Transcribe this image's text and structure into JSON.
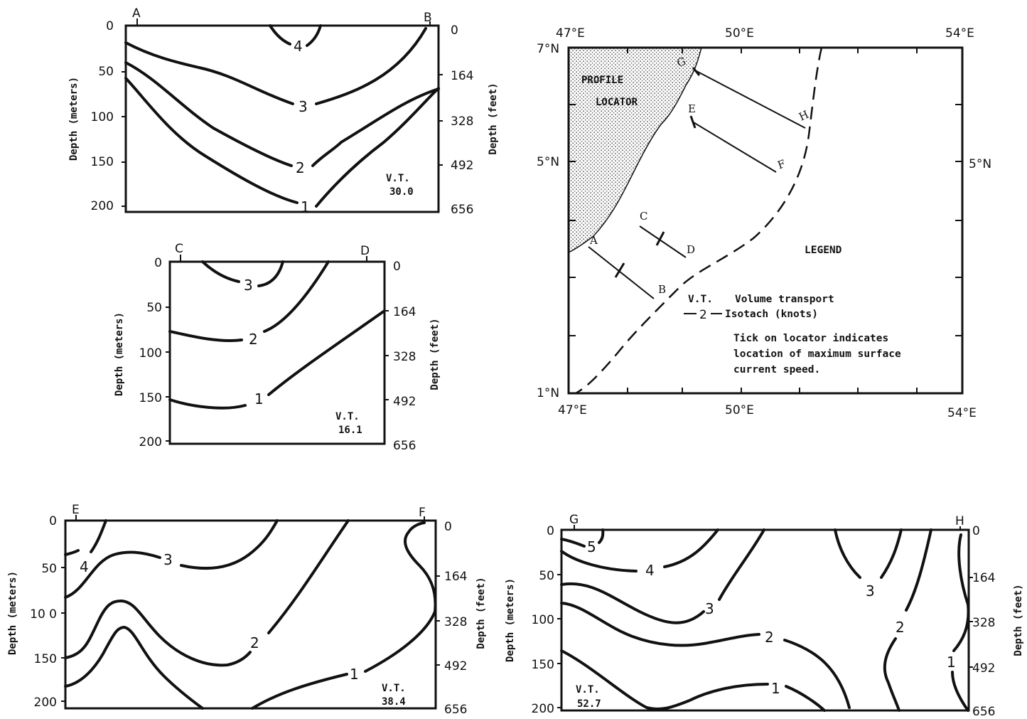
{
  "profiles": {
    "ab": {
      "start": "A",
      "end": "B",
      "vt_label": "V.T.",
      "vt_value": "30.0",
      "meters": [
        "0",
        "50",
        "100",
        "150",
        "200"
      ],
      "feet": [
        "0",
        "164",
        "328",
        "492",
        "656"
      ],
      "isotachs": [
        "1",
        "2",
        "3",
        "4"
      ]
    },
    "cd": {
      "start": "C",
      "end": "D",
      "vt_label": "V.T.",
      "vt_value": "16.1",
      "meters": [
        "0",
        "50",
        "100",
        "150",
        "200"
      ],
      "feet": [
        "0",
        "164",
        "328",
        "492",
        "656"
      ],
      "isotachs": [
        "1",
        "2",
        "3"
      ]
    },
    "ef": {
      "start": "E",
      "end": "F",
      "vt_label": "V.T.",
      "vt_value": "38.4",
      "meters": [
        "0",
        "50",
        "10 0",
        "150",
        "200"
      ],
      "feet": [
        "0",
        "164",
        "328",
        "492",
        "656"
      ],
      "isotachs": [
        "1",
        "2",
        "3",
        "4"
      ]
    },
    "gh": {
      "start": "G",
      "end": "H",
      "vt_label": "V.T.",
      "vt_value": "52.7",
      "meters": [
        "0",
        "50",
        "100",
        "150",
        "200"
      ],
      "feet": [
        "0",
        "164",
        "328",
        "492",
        "656"
      ],
      "isotachs": [
        "1",
        "2",
        "3",
        "4",
        "5",
        "3",
        "2",
        "1"
      ]
    }
  },
  "axis_titles": {
    "meters": "Depth (meters)",
    "feet": "Depth (feet)"
  },
  "map": {
    "lon_top": [
      "47°E",
      "50°E",
      "54°E"
    ],
    "lon_bottom": [
      "47°E",
      "50°E",
      "54°E"
    ],
    "lat_left": [
      "7°N",
      "5°N",
      "1°N"
    ],
    "lat_right": [
      "5°N"
    ],
    "locator_line1": "PROFILE",
    "locator_line2": "LOCATOR",
    "points": [
      "A",
      "B",
      "C",
      "D",
      "E",
      "F",
      "G",
      "H"
    ]
  },
  "legend": {
    "title": "LEGEND",
    "vt_key": "V.T.",
    "vt_desc": "Volume transport",
    "iso_key": "2",
    "iso_desc": "Isotach (knots)",
    "note_line1": "Tick on locator indicates",
    "note_line2": "location of maximum surface",
    "note_line3": "current speed."
  }
}
